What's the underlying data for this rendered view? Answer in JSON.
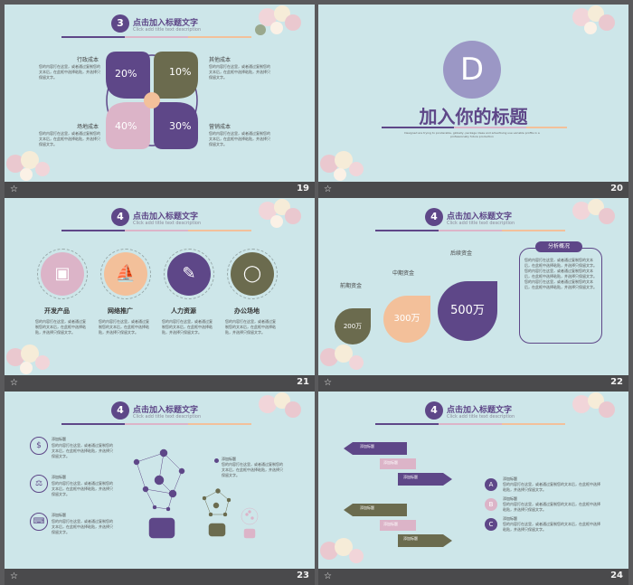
{
  "colors": {
    "purple": "#5e4788",
    "olive": "#6b6b4e",
    "pink": "#dcb4c8",
    "peach": "#f3c09a",
    "bg": "#cde6e9"
  },
  "header": {
    "title": "点击加入标题文字",
    "subtitle": "Click add title text description"
  },
  "lorem_short": "您的内容打在这里，或者通过复制您的文本后，在此框中选择粘贴，并选择只保留文字。",
  "slide19": {
    "num": "19",
    "step": "3",
    "petals": [
      {
        "value": "20%"
      },
      {
        "value": "10%"
      },
      {
        "value": "40%"
      },
      {
        "value": "30%"
      }
    ],
    "labels": [
      "行政成本",
      "其他成本",
      "场地成本",
      "营销成本"
    ],
    "desc": "您的内容打在这里，或者通过复制您的文本后，在此框中选择粘贴，并选择只保留文字。"
  },
  "slide20": {
    "num": "20",
    "letter": "D",
    "title": "加入你的标题",
    "sub": "Designed are trying to ponderable, globally, package ideas and advertising use variable profits in a professionally future production"
  },
  "slide21": {
    "num": "21",
    "step": "4",
    "items": [
      {
        "label": "开发产品",
        "icon": "camera-icon"
      },
      {
        "label": "网络推广",
        "icon": "sailboat-icon"
      },
      {
        "label": "人力资源",
        "icon": "brush-icon"
      },
      {
        "label": "办公场地",
        "icon": "mouse-icon"
      }
    ],
    "desc": "您的内容打在这里，或者通过复制您的文本后，在此框中选择粘贴，并选择只保留文字。"
  },
  "slide22": {
    "num": "22",
    "step": "4",
    "drops": [
      {
        "label": "前期资金",
        "value": "200万"
      },
      {
        "label": "中期资金",
        "value": "300万"
      },
      {
        "label": "后续资金",
        "value": "500万"
      }
    ],
    "box_title": "分析概况",
    "box_text": "您的内容打在这里，或者通过复制您的文本后，在此框中选择粘贴，并选择只保留文字。您的内容打在这里，或者通过复制您的文本后，在此框中选择粘贴，并选择只保留文字。您的内容打在这里，或者通过复制您的文本后，在此框中选择粘贴，并选择只保留文字。"
  },
  "slide23": {
    "num": "23",
    "step": "4",
    "rows": [
      {
        "title": "添加标题",
        "icon": "money-bag-icon"
      },
      {
        "title": "添加标题",
        "icon": "scales-icon"
      },
      {
        "title": "添加标题",
        "icon": "keyboard-icon"
      }
    ],
    "desc": "您的内容打在这里，或者通过复制您的文本后，在此框中选择粘贴，并选择只保留文字。",
    "bulb_title": "添加标题",
    "bulb_desc": "您的内容打在这里，或者通过复制您的文本后，在此框中选择粘贴，并选择只保留文字。"
  },
  "slide24": {
    "num": "24",
    "step": "4",
    "arrows": [
      "添加标题",
      "添加标题",
      "添加标题",
      "添加标题",
      "添加标题",
      "添加标题"
    ],
    "points": [
      {
        "letter": "A",
        "title": "添加标题"
      },
      {
        "letter": "B",
        "title": "添加标题"
      },
      {
        "letter": "C",
        "title": "添加标题"
      }
    ],
    "desc": "您的内容打在这里，或者通过复制您的文本后，在此框中选择粘贴，并选择只保留文字。"
  }
}
